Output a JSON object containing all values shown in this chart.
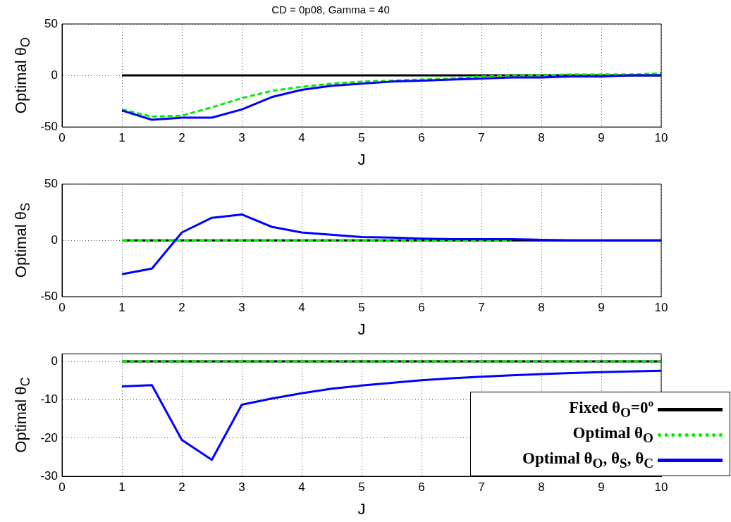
{
  "chart_data": [
    {
      "type": "line",
      "title": "CD = 0p08, Gamma = 40",
      "xlabel": "J",
      "ylabel": "Optimal θ$_{O}$",
      "x": [
        1,
        1.5,
        2,
        2.5,
        3,
        3.5,
        4,
        4.5,
        5,
        5.5,
        6,
        6.5,
        7,
        7.5,
        8,
        8.5,
        9,
        9.5,
        10
      ],
      "xlim": [
        0,
        10
      ],
      "xticks": [
        0,
        1,
        2,
        3,
        4,
        5,
        6,
        7,
        8,
        9,
        10
      ],
      "ylim": [
        -50,
        50
      ],
      "yticks": [
        -50,
        0,
        50
      ],
      "grid": true,
      "marker": "none",
      "series": [
        {
          "color": "#000000",
          "line_style": "solid",
          "values": [
            0,
            0,
            0,
            0,
            0,
            0,
            0,
            0,
            0,
            0,
            0,
            0,
            0,
            0,
            0,
            0,
            0,
            0,
            0
          ]
        },
        {
          "color": "#00ee00",
          "line_style": "dashed",
          "values": [
            -33,
            -40,
            -39,
            -31,
            -22,
            -15,
            -11,
            -8,
            -6,
            -5,
            -4,
            -3,
            -1,
            0,
            0,
            1,
            1,
            1,
            2
          ]
        },
        {
          "color": "#0000ff",
          "line_style": "solid",
          "values": [
            -34,
            -43,
            -41,
            -41,
            -33,
            -21,
            -14,
            -10,
            -8,
            -6,
            -5,
            -4,
            -3,
            -2,
            -2,
            -1,
            -1,
            0,
            0
          ]
        }
      ]
    },
    {
      "type": "line",
      "xlabel": "J",
      "ylabel": "Optimal θ$_{S}$",
      "x": [
        1,
        1.5,
        2,
        2.5,
        3,
        3.5,
        4,
        4.5,
        5,
        5.5,
        6,
        6.5,
        7,
        7.5,
        8,
        8.5,
        9,
        9.5,
        10
      ],
      "xlim": [
        0,
        10
      ],
      "xticks": [
        0,
        1,
        2,
        3,
        4,
        5,
        6,
        7,
        8,
        9,
        10
      ],
      "ylim": [
        -50,
        50
      ],
      "yticks": [
        -50,
        0,
        50
      ],
      "grid": true,
      "marker": "none",
      "series": [
        {
          "color": "#000000",
          "line_style": "solid",
          "values": [
            0,
            0,
            0,
            0,
            0,
            0,
            0,
            0,
            0,
            0,
            0,
            0,
            0,
            0,
            0,
            0,
            0,
            0,
            0
          ]
        },
        {
          "color": "#00ee00",
          "line_style": "dashed",
          "values": [
            0,
            0,
            0,
            0,
            0,
            0,
            0,
            0,
            0,
            0,
            0,
            0,
            0,
            0,
            null,
            null,
            null,
            null,
            null
          ]
        },
        {
          "color": "#0000ff",
          "line_style": "solid",
          "values": [
            -30,
            -25,
            7,
            20,
            23,
            12,
            7,
            5,
            3,
            2.5,
            1.5,
            1,
            1,
            1,
            0.5,
            0,
            0,
            0,
            0
          ]
        }
      ]
    },
    {
      "type": "line",
      "xlabel": "J",
      "ylabel": "Optimal θ$_{C}$",
      "x": [
        1,
        1.5,
        2,
        2.5,
        3,
        3.5,
        4,
        4.5,
        5,
        5.5,
        6,
        6.5,
        7,
        7.5,
        8,
        8.5,
        9,
        9.5,
        10
      ],
      "xlim": [
        0,
        10
      ],
      "xticks": [
        0,
        1,
        2,
        3,
        4,
        5,
        6,
        7,
        8,
        9,
        10
      ],
      "ylim": [
        -30,
        2
      ],
      "yticks": [
        -30,
        -20,
        -10,
        0
      ],
      "grid": true,
      "marker": "none",
      "legend": "bottom right",
      "series": [
        {
          "name": "Fixed θ$_{O}$=0º",
          "color": "#000000",
          "line_style": "solid",
          "values": [
            0,
            0,
            0,
            0,
            0,
            0,
            0,
            0,
            0,
            0,
            0,
            0,
            0,
            0,
            0,
            0,
            0,
            0,
            0
          ]
        },
        {
          "name": "Optimal θ$_{O}$",
          "color": "#00ee00",
          "line_style": "dashed",
          "values": [
            0,
            0,
            0,
            0,
            0,
            0,
            0,
            0,
            0,
            0,
            0,
            0,
            0,
            0,
            0,
            0,
            0,
            0,
            0
          ]
        },
        {
          "name": "Optimal θ$_{O}$, θ$_{S}$, θ$_{C}$",
          "color": "#0000ff",
          "line_style": "solid",
          "values": [
            -6.5,
            -6.2,
            -20.5,
            -25.7,
            -11.3,
            -9.7,
            -8.3,
            -7.1,
            -6.3,
            -5.6,
            -4.9,
            -4.4,
            -4.0,
            -3.6,
            -3.3,
            -3.0,
            -2.8,
            -2.6,
            -2.4
          ]
        }
      ]
    }
  ]
}
